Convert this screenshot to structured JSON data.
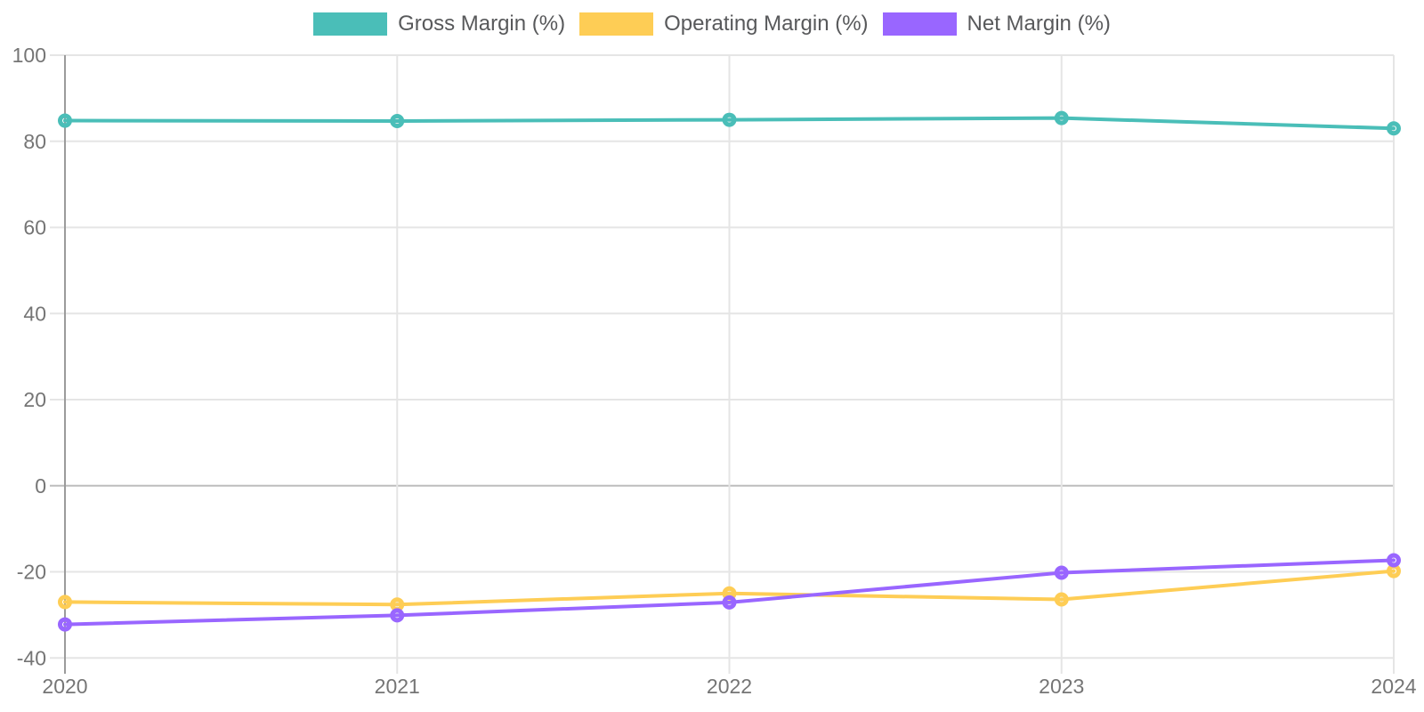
{
  "chart_data": {
    "type": "line",
    "title": "",
    "xlabel": "",
    "ylabel": "",
    "categories": [
      "2020",
      "2021",
      "2022",
      "2023",
      "2024"
    ],
    "series": [
      {
        "name": "Gross Margin (%)",
        "color": "#4ABEB8",
        "values": [
          84.8,
          84.7,
          85.0,
          85.4,
          83.0
        ]
      },
      {
        "name": "Operating Margin (%)",
        "color": "#FECD55",
        "values": [
          -27.0,
          -27.6,
          -25.0,
          -26.4,
          -19.8
        ]
      },
      {
        "name": "Net Margin (%)",
        "color": "#9966FF",
        "values": [
          -32.2,
          -30.1,
          -27.1,
          -20.2,
          -17.3
        ]
      }
    ],
    "ylim": [
      -40,
      100
    ],
    "yticks": [
      100,
      80,
      60,
      40,
      20,
      0,
      -20,
      -40
    ],
    "grid": true,
    "legend_position": "top",
    "line_width": 4,
    "point_style": "hollow-circle"
  },
  "colors": {
    "background": "#FFFFFF",
    "gridline": "#E5E5E5",
    "zero_gridline": "#BDBDBD",
    "axis_line": "#9B9B9B",
    "tick_label": "#757575",
    "legend_label": "#58595B"
  }
}
